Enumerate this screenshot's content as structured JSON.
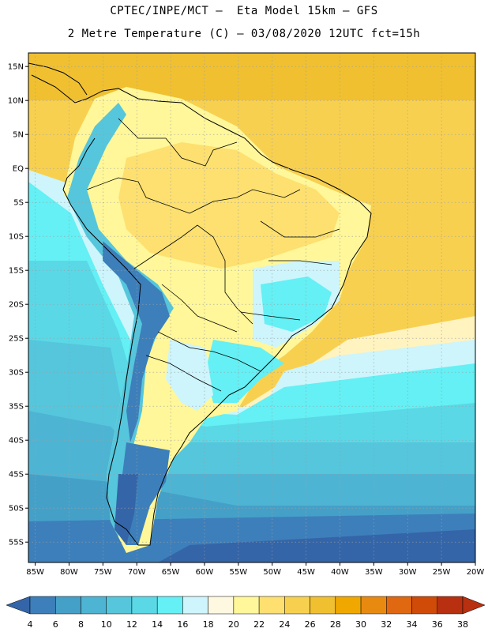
{
  "header": {
    "line1": "CPTEC/INPE/MCT –  Eta Model 15km – GFS",
    "line2": "2 Metre Temperature (C) – 03/08/2020 12UTC fct=15h"
  },
  "map": {
    "lon_range": [
      -86,
      -20
    ],
    "lat_range": [
      17,
      -58
    ],
    "lon_ticks": [
      {
        "value": -85,
        "label": "85W"
      },
      {
        "value": -80,
        "label": "80W"
      },
      {
        "value": -75,
        "label": "75W"
      },
      {
        "value": -70,
        "label": "70W"
      },
      {
        "value": -65,
        "label": "65W"
      },
      {
        "value": -60,
        "label": "60W"
      },
      {
        "value": -55,
        "label": "55W"
      },
      {
        "value": -50,
        "label": "50W"
      },
      {
        "value": -45,
        "label": "45W"
      },
      {
        "value": -40,
        "label": "40W"
      },
      {
        "value": -35,
        "label": "35W"
      },
      {
        "value": -30,
        "label": "30W"
      },
      {
        "value": -25,
        "label": "25W"
      },
      {
        "value": -20,
        "label": "20W"
      }
    ],
    "lat_ticks": [
      {
        "value": 15,
        "label": "15N"
      },
      {
        "value": 10,
        "label": "10N"
      },
      {
        "value": 5,
        "label": "5N"
      },
      {
        "value": 0,
        "label": "EQ"
      },
      {
        "value": -5,
        "label": "5S"
      },
      {
        "value": -10,
        "label": "10S"
      },
      {
        "value": -15,
        "label": "15S"
      },
      {
        "value": -20,
        "label": "20S"
      },
      {
        "value": -25,
        "label": "25S"
      },
      {
        "value": -30,
        "label": "30S"
      },
      {
        "value": -35,
        "label": "35S"
      },
      {
        "value": -40,
        "label": "40S"
      },
      {
        "value": -45,
        "label": "45S"
      },
      {
        "value": -50,
        "label": "50S"
      },
      {
        "value": -55,
        "label": "55S"
      }
    ],
    "grid": "dotted"
  },
  "colorbar": {
    "labels": [
      "4",
      "6",
      "8",
      "10",
      "12",
      "14",
      "16",
      "18",
      "20",
      "22",
      "24",
      "26",
      "28",
      "30",
      "32",
      "34",
      "36",
      "38"
    ],
    "colors": [
      "#3465a8",
      "#3d7fba",
      "#45a0c8",
      "#4eb4d3",
      "#55c6dc",
      "#5ad8e6",
      "#64f0f4",
      "#cdf5fb",
      "#fff8e0",
      "#fff799",
      "#fde070",
      "#f8d050",
      "#f0c030",
      "#f0a800",
      "#e88a10",
      "#e06810",
      "#d04a08",
      "#b83010"
    ]
  }
}
